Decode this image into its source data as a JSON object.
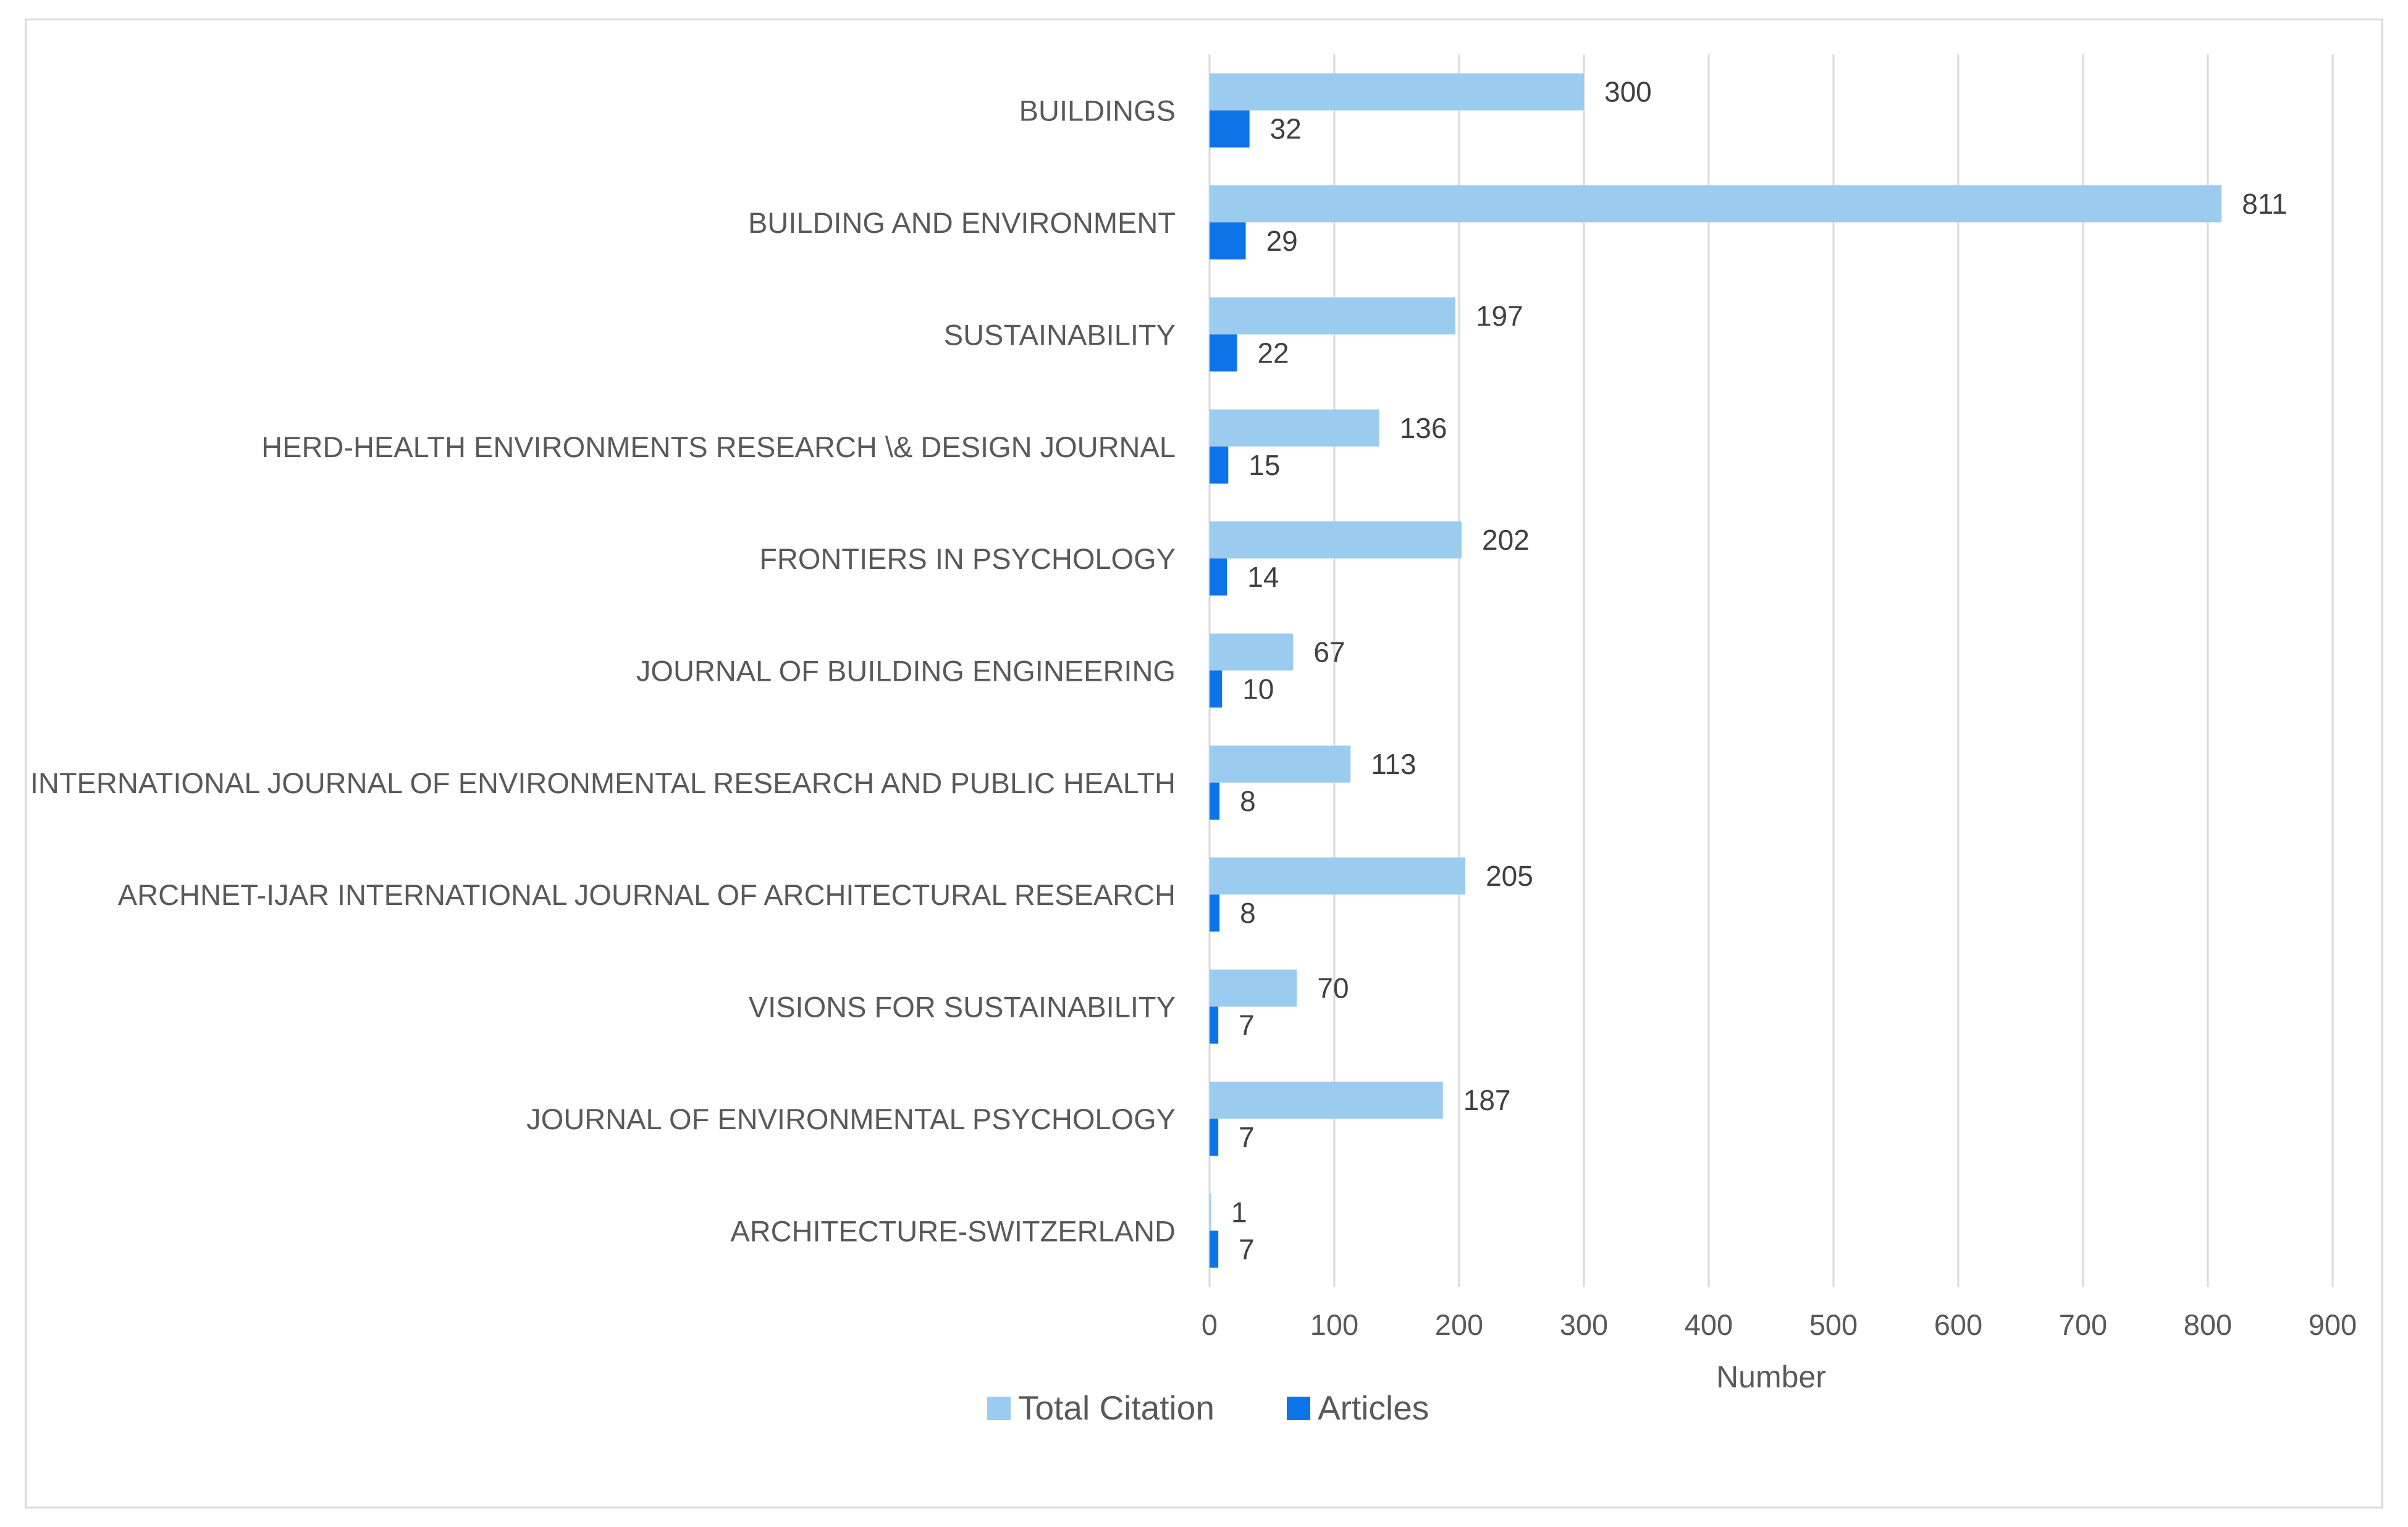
{
  "chart_data": {
    "type": "bar",
    "orientation": "horizontal",
    "title": "",
    "xlabel": "Number",
    "ylabel": "",
    "xlim": [
      0,
      900
    ],
    "xticks": [
      0,
      100,
      200,
      300,
      400,
      500,
      600,
      700,
      800,
      900
    ],
    "xtick_labels": [
      "0",
      "100",
      "200",
      "300",
      "400",
      "500",
      "600",
      "700",
      "800",
      "900"
    ],
    "grid": "vertical",
    "legend_position": "bottom",
    "categories": [
      "BUILDINGS",
      "BUILDING AND ENVIRONMENT",
      "SUSTAINABILITY",
      "HERD-HEALTH ENVIRONMENTS RESEARCH \\& DESIGN JOURNAL",
      "FRONTIERS IN PSYCHOLOGY",
      "JOURNAL OF BUILDING ENGINEERING",
      "INTERNATIONAL JOURNAL OF ENVIRONMENTAL RESEARCH AND PUBLIC HEALTH",
      "ARCHNET-IJAR INTERNATIONAL JOURNAL OF ARCHITECTURAL RESEARCH",
      "VISIONS FOR SUSTAINABILITY",
      "JOURNAL OF ENVIRONMENTAL PSYCHOLOGY",
      "ARCHITECTURE-SWITZERLAND"
    ],
    "series": [
      {
        "name": "Total Citation",
        "color": "#9ccbf0",
        "values": [
          300,
          811,
          197,
          136,
          202,
          67,
          113,
          205,
          70,
          187,
          1
        ]
      },
      {
        "name": "Articles",
        "color": "#0b74e8",
        "values": [
          32,
          29,
          22,
          15,
          14,
          10,
          8,
          8,
          7,
          7,
          7
        ]
      }
    ]
  }
}
